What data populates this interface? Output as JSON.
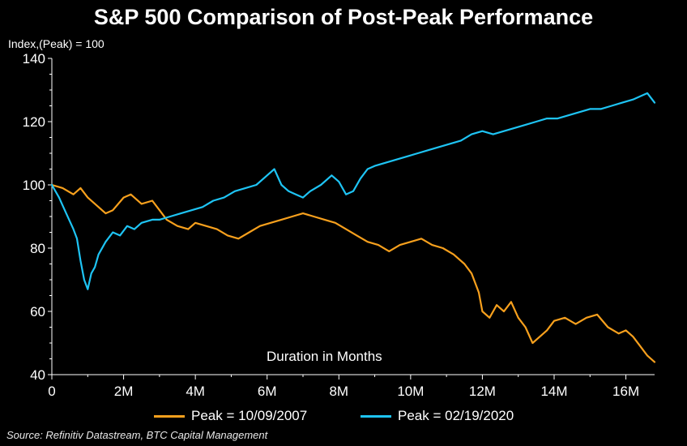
{
  "chart_data": {
    "type": "line",
    "title": "S&P 500 Comparison of Post-Peak Performance",
    "ylabel": "Index,(Peak) = 100",
    "xlabel": "Duration in Months",
    "source": "Source: Refinitiv Datastream, BTC Capital Management",
    "xlim": [
      0,
      16.8
    ],
    "ylim": [
      40,
      140
    ],
    "x_ticks": [
      0,
      2,
      4,
      6,
      8,
      10,
      12,
      14,
      16
    ],
    "x_tick_labels": [
      "0",
      "2M",
      "4M",
      "6M",
      "8M",
      "10M",
      "12M",
      "14M",
      "16M"
    ],
    "y_ticks": [
      40,
      60,
      80,
      100,
      120,
      140
    ],
    "y_tick_labels": [
      "40",
      "60",
      "80",
      "100",
      "120",
      "140"
    ],
    "legend_position": "bottom",
    "series": [
      {
        "name": "Peak = 10/09/2007",
        "color": "#F7A01D",
        "x": [
          0,
          0.3,
          0.6,
          0.8,
          1.0,
          1.3,
          1.5,
          1.7,
          2.0,
          2.2,
          2.5,
          2.8,
          3.0,
          3.2,
          3.5,
          3.8,
          4.0,
          4.3,
          4.6,
          4.9,
          5.2,
          5.5,
          5.8,
          6.1,
          6.4,
          6.7,
          7.0,
          7.3,
          7.6,
          7.9,
          8.2,
          8.5,
          8.8,
          9.1,
          9.4,
          9.7,
          10.0,
          10.3,
          10.6,
          10.9,
          11.2,
          11.5,
          11.7,
          11.9,
          12.0,
          12.2,
          12.4,
          12.6,
          12.8,
          13.0,
          13.2,
          13.4,
          13.6,
          13.8,
          14.0,
          14.3,
          14.6,
          14.9,
          15.2,
          15.5,
          15.8,
          16.0,
          16.2,
          16.4,
          16.6,
          16.8
        ],
        "y": [
          100,
          99,
          97,
          99,
          96,
          93,
          91,
          92,
          96,
          97,
          94,
          95,
          92,
          89,
          87,
          86,
          88,
          87,
          86,
          84,
          83,
          85,
          87,
          88,
          89,
          90,
          91,
          90,
          89,
          88,
          86,
          84,
          82,
          81,
          79,
          81,
          82,
          83,
          81,
          80,
          78,
          75,
          72,
          66,
          60,
          58,
          62,
          60,
          63,
          58,
          55,
          50,
          52,
          54,
          57,
          58,
          56,
          58,
          59,
          55,
          53,
          54,
          52,
          49,
          46,
          44
        ]
      },
      {
        "name": "Peak = 02/19/2020",
        "color": "#1EC4F4",
        "x": [
          0,
          0.2,
          0.4,
          0.6,
          0.7,
          0.8,
          0.9,
          1.0,
          1.1,
          1.2,
          1.3,
          1.5,
          1.7,
          1.9,
          2.1,
          2.3,
          2.5,
          2.8,
          3.0,
          3.3,
          3.6,
          3.9,
          4.2,
          4.5,
          4.8,
          5.1,
          5.4,
          5.7,
          6.0,
          6.2,
          6.4,
          6.6,
          6.8,
          7.0,
          7.2,
          7.5,
          7.8,
          8.0,
          8.2,
          8.4,
          8.6,
          8.8,
          9.0,
          9.3,
          9.6,
          9.9,
          10.2,
          10.5,
          10.8,
          11.1,
          11.4,
          11.7,
          12.0,
          12.3,
          12.6,
          12.9,
          13.2,
          13.5,
          13.8,
          14.1,
          14.4,
          14.7,
          15.0,
          15.3,
          15.6,
          15.9,
          16.2,
          16.4,
          16.6,
          16.8
        ],
        "y": [
          100,
          96,
          91,
          86,
          83,
          76,
          70,
          67,
          72,
          74,
          78,
          82,
          85,
          84,
          87,
          86,
          88,
          89,
          89,
          90,
          91,
          92,
          93,
          95,
          96,
          98,
          99,
          100,
          103,
          105,
          100,
          98,
          97,
          96,
          98,
          100,
          103,
          101,
          97,
          98,
          102,
          105,
          106,
          107,
          108,
          109,
          110,
          111,
          112,
          113,
          114,
          116,
          117,
          116,
          117,
          118,
          119,
          120,
          121,
          121,
          122,
          123,
          124,
          124,
          125,
          126,
          127,
          128,
          129,
          126
        ]
      }
    ]
  }
}
